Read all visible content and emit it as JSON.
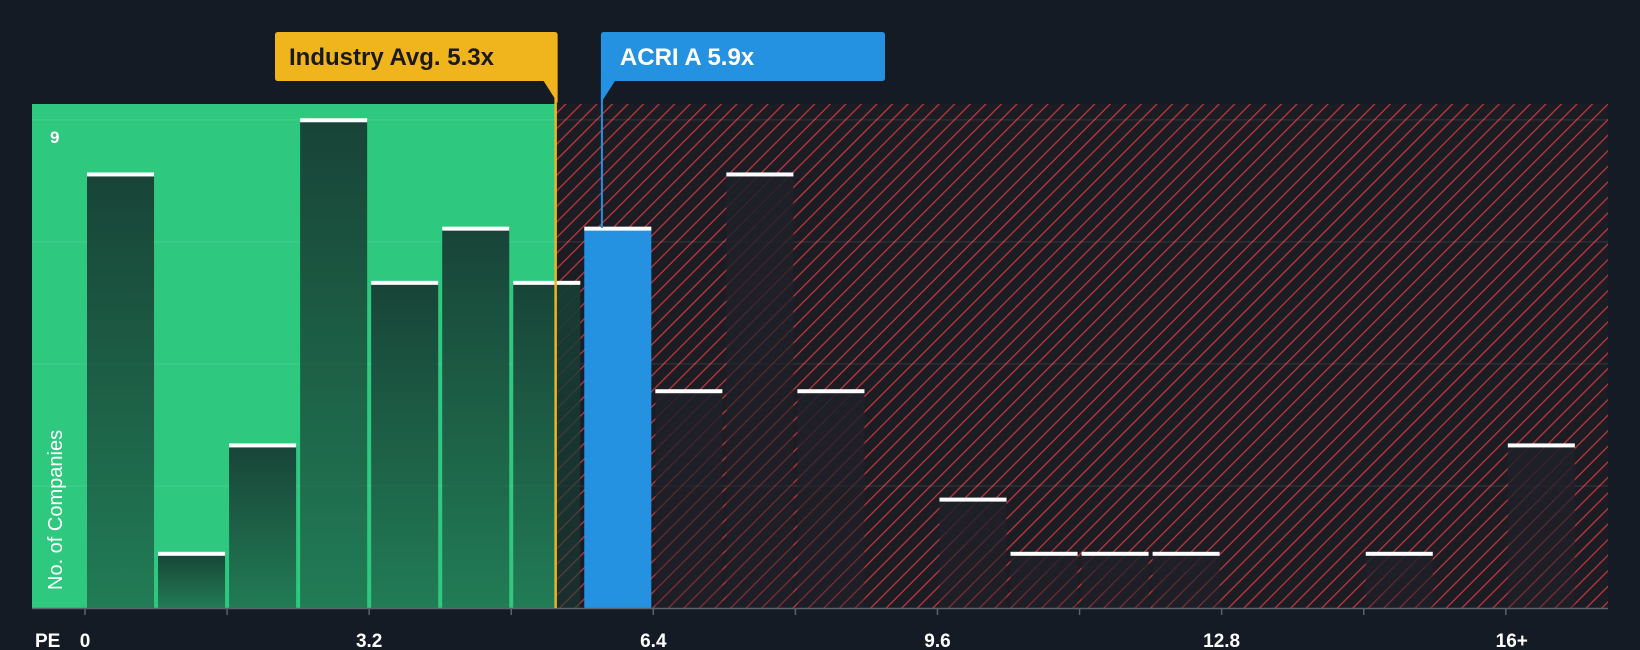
{
  "chart_data": {
    "type": "bar",
    "xlabel": "PE",
    "ylabel": "No. of Companies",
    "x_ticks": [
      "0",
      "3.2",
      "6.4",
      "9.6",
      "12.8",
      "16+"
    ],
    "x_tick_values": [
      0,
      3.2,
      6.4,
      9.6,
      12.8,
      16
    ],
    "y_tick_label": "9",
    "ylim": [
      0,
      9.3
    ],
    "xlim": [
      0,
      16.4
    ],
    "bin_width": 0.8,
    "bins": [
      {
        "x0": 0.0,
        "count": 8
      },
      {
        "x0": 0.8,
        "count": 1
      },
      {
        "x0": 1.6,
        "count": 3
      },
      {
        "x0": 2.4,
        "count": 9
      },
      {
        "x0": 3.2,
        "count": 6
      },
      {
        "x0": 4.0,
        "count": 7
      },
      {
        "x0": 4.8,
        "count": 6
      },
      {
        "x0": 5.6,
        "count": 7,
        "highlight": true
      },
      {
        "x0": 6.4,
        "count": 4
      },
      {
        "x0": 7.2,
        "count": 8
      },
      {
        "x0": 8.0,
        "count": 4
      },
      {
        "x0": 8.8,
        "count": 0
      },
      {
        "x0": 9.6,
        "count": 2
      },
      {
        "x0": 10.4,
        "count": 1
      },
      {
        "x0": 11.2,
        "count": 1
      },
      {
        "x0": 12.0,
        "count": 1
      },
      {
        "x0": 12.8,
        "count": 0
      },
      {
        "x0": 13.6,
        "count": 0
      },
      {
        "x0": 14.4,
        "count": 1
      },
      {
        "x0": 15.2,
        "count": 0
      },
      {
        "x0": 16.0,
        "count": 3
      }
    ],
    "industry_avg": {
      "label": "Industry Avg. 5.3x",
      "value": 5.3
    },
    "company": {
      "label": "ACRI A 5.9x",
      "value": 5.9
    },
    "colors": {
      "background": "#151b24",
      "fair_zone": "#2ec97e",
      "overvalued_hatch": "#d0403f",
      "highlight_bar": "#2492e0",
      "industry_marker": "#f0b41c",
      "bar_cap": "#ffffff"
    }
  }
}
